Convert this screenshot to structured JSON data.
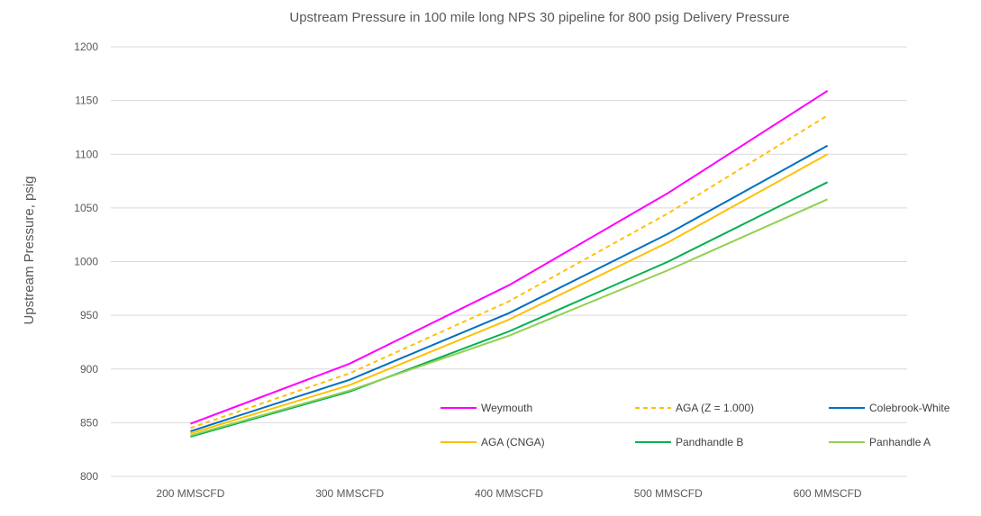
{
  "chart_data": {
    "type": "line",
    "title": "Upstream Pressure in 100 mile long NPS 30 pipeline for 800 psig Delivery  Pressure",
    "xlabel": "",
    "ylabel": "Upstream Pressure, psig",
    "categories": [
      "200 MMSCFD",
      "300 MMSCFD",
      "400 MMSCFD",
      "500 MMSCFD",
      "600 MMSCFD"
    ],
    "ylim": [
      800,
      1200
    ],
    "yticks": [
      800,
      850,
      900,
      950,
      1000,
      1050,
      1100,
      1150,
      1200
    ],
    "grid": true,
    "legend_position": "bottom-right, inside plot",
    "series": [
      {
        "name": "Weymouth",
        "values": [
          849,
          905,
          978,
          1064,
          1159
        ],
        "color": "#ff00ff",
        "dash": false
      },
      {
        "name": "AGA (Z = 1.000)",
        "values": [
          845,
          896,
          963,
          1045,
          1136
        ],
        "color": "#ffc000",
        "dash": true
      },
      {
        "name": "Colebrook-White",
        "values": [
          842,
          890,
          952,
          1026,
          1108
        ],
        "color": "#0070c0",
        "dash": false
      },
      {
        "name": "AGA (CNGA)",
        "values": [
          840,
          885,
          946,
          1018,
          1100
        ],
        "color": "#ffc000",
        "dash": false
      },
      {
        "name": "Pandhandle B",
        "values": [
          837,
          879,
          935,
          1000,
          1074
        ],
        "color": "#00b050",
        "dash": false
      },
      {
        "name": "Panhandle A",
        "values": [
          838,
          880,
          931,
          992,
          1058
        ],
        "color": "#92d050",
        "dash": false
      }
    ]
  }
}
